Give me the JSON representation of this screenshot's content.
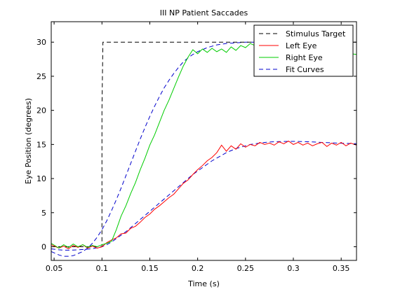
{
  "chart_data": {
    "type": "line",
    "title": "III NP Patient Saccades",
    "xlabel": "Time (s)",
    "ylabel": "Eye Position (degrees)",
    "xlim": [
      0.047,
      0.366
    ],
    "ylim": [
      -2,
      33
    ],
    "xticks": [
      0.05,
      0.1,
      0.15,
      0.2,
      0.25,
      0.3,
      0.35
    ],
    "xtick_labels": [
      "0.05",
      "0.1",
      "0.15",
      "0.2",
      "0.25",
      "0.3",
      "0.35"
    ],
    "yticks": [
      0,
      5,
      10,
      15,
      20,
      25,
      30
    ],
    "ytick_labels": [
      "0",
      "5",
      "10",
      "15",
      "20",
      "25",
      "30"
    ],
    "grid": false,
    "legend_position": "top-right",
    "series": [
      {
        "name": "Stimulus Target",
        "color": "#000000",
        "dash": "dashed",
        "x": [
          0.047,
          0.1,
          0.1,
          0.101,
          0.366
        ],
        "y": [
          0,
          0,
          20,
          30,
          30
        ]
      },
      {
        "name": "Left Eye",
        "color": "#ff0000",
        "dash": "solid",
        "x": [
          0.047,
          0.055,
          0.06,
          0.065,
          0.07,
          0.075,
          0.08,
          0.085,
          0.09,
          0.095,
          0.1,
          0.105,
          0.11,
          0.115,
          0.12,
          0.125,
          0.13,
          0.135,
          0.14,
          0.145,
          0.15,
          0.155,
          0.16,
          0.165,
          0.17,
          0.175,
          0.18,
          0.185,
          0.19,
          0.195,
          0.2,
          0.205,
          0.21,
          0.215,
          0.22,
          0.225,
          0.23,
          0.235,
          0.24,
          0.245,
          0.25,
          0.255,
          0.26,
          0.265,
          0.27,
          0.275,
          0.28,
          0.285,
          0.29,
          0.295,
          0.3,
          0.305,
          0.31,
          0.315,
          0.32,
          0.325,
          0.33,
          0.335,
          0.34,
          0.345,
          0.35,
          0.355,
          0.36,
          0.366
        ],
        "y": [
          0.3,
          -0.2,
          0.1,
          -0.3,
          0.2,
          -0.1,
          0.3,
          -0.2,
          0.1,
          -0.2,
          0.0,
          0.6,
          1.0,
          1.3,
          1.9,
          2.0,
          2.7,
          3.0,
          3.6,
          4.3,
          4.8,
          5.5,
          6.0,
          6.6,
          7.2,
          7.7,
          8.5,
          9.3,
          9.8,
          10.6,
          11.3,
          11.9,
          12.6,
          13.1,
          13.8,
          14.9,
          14.0,
          14.8,
          14.3,
          15.1,
          14.6,
          15.0,
          14.8,
          15.3,
          15.0,
          15.2,
          14.9,
          15.4,
          15.1,
          15.5,
          15.0,
          15.3,
          14.9,
          15.2,
          14.8,
          15.1,
          15.3,
          14.7,
          15.2,
          14.9,
          15.3,
          14.8,
          15.2,
          14.9
        ]
      },
      {
        "name": "Right Eye",
        "color": "#00cc00",
        "dash": "solid",
        "x": [
          0.047,
          0.055,
          0.06,
          0.065,
          0.07,
          0.075,
          0.08,
          0.085,
          0.09,
          0.095,
          0.1,
          0.105,
          0.11,
          0.115,
          0.12,
          0.125,
          0.13,
          0.135,
          0.14,
          0.145,
          0.15,
          0.155,
          0.16,
          0.165,
          0.17,
          0.175,
          0.18,
          0.185,
          0.19,
          0.195,
          0.2,
          0.205,
          0.21,
          0.215,
          0.22,
          0.225,
          0.23,
          0.235,
          0.24,
          0.245,
          0.25,
          0.255,
          0.26,
          0.265,
          0.27,
          0.275,
          0.28,
          0.285,
          0.29,
          0.295,
          0.3,
          0.305,
          0.31,
          0.315,
          0.32,
          0.325,
          0.33,
          0.335,
          0.34,
          0.345,
          0.35,
          0.355,
          0.36,
          0.366
        ],
        "y": [
          0.5,
          -0.2,
          0.3,
          -0.1,
          0.4,
          0.0,
          0.3,
          -0.1,
          0.2,
          0.0,
          0.3,
          0.5,
          0.8,
          2.5,
          4.5,
          6.0,
          7.8,
          9.4,
          11.3,
          13.0,
          14.9,
          16.4,
          18.2,
          20.0,
          21.5,
          23.2,
          24.9,
          26.5,
          27.8,
          28.9,
          28.3,
          29.0,
          28.5,
          29.1,
          28.6,
          29.0,
          28.5,
          29.3,
          28.8,
          29.5,
          29.2,
          29.8,
          29.5,
          30.1,
          29.7,
          29.9,
          29.4,
          29.7,
          29.2,
          29.5,
          28.8,
          29.3,
          28.7,
          29.1,
          28.5,
          29.0,
          28.6,
          29.2,
          28.7,
          28.9,
          28.5,
          28.7,
          28.3,
          28.2
        ]
      },
      {
        "name": "Fit Curves",
        "color": "#0000cc",
        "dash": "dashed",
        "parts": [
          {
            "x": [
              0.047,
              0.055,
              0.06,
              0.065,
              0.07,
              0.075,
              0.08,
              0.085,
              0.09,
              0.095,
              0.1,
              0.105,
              0.11,
              0.115,
              0.12,
              0.125,
              0.13,
              0.135,
              0.14,
              0.145,
              0.15,
              0.155,
              0.16,
              0.165,
              0.17,
              0.175,
              0.18,
              0.185,
              0.19,
              0.195,
              0.2,
              0.205,
              0.21,
              0.215,
              0.22,
              0.225,
              0.23,
              0.235,
              0.24,
              0.245,
              0.25,
              0.255,
              0.26,
              0.265,
              0.27
            ],
            "y": [
              -0.7,
              -1.2,
              -1.4,
              -1.4,
              -1.3,
              -1.0,
              -0.7,
              -0.2,
              0.5,
              1.4,
              2.5,
              3.8,
              5.3,
              6.9,
              8.6,
              10.4,
              12.2,
              14.0,
              15.8,
              17.5,
              19.1,
              20.6,
              22.0,
              23.3,
              24.4,
              25.4,
              26.3,
              27.1,
              27.7,
              28.2,
              28.6,
              28.9,
              29.2,
              29.4,
              29.6,
              29.7,
              29.8,
              29.85,
              29.9,
              29.95,
              30.0,
              30.0,
              30.0,
              30.0,
              30.0
            ]
          },
          {
            "x": [
              0.047,
              0.055,
              0.06,
              0.065,
              0.07,
              0.075,
              0.08,
              0.085,
              0.09,
              0.095,
              0.1,
              0.105,
              0.11,
              0.115,
              0.12,
              0.125,
              0.13,
              0.135,
              0.14,
              0.145,
              0.15,
              0.155,
              0.16,
              0.165,
              0.17,
              0.175,
              0.18,
              0.185,
              0.19,
              0.195,
              0.2,
              0.205,
              0.21,
              0.215,
              0.22,
              0.225,
              0.23,
              0.235,
              0.24,
              0.245,
              0.25,
              0.255,
              0.26,
              0.265,
              0.27,
              0.275,
              0.28,
              0.285,
              0.29,
              0.295,
              0.3,
              0.305,
              0.31,
              0.315,
              0.32,
              0.325,
              0.33,
              0.335,
              0.34,
              0.345,
              0.35,
              0.355,
              0.36,
              0.366
            ],
            "y": [
              -0.3,
              -0.45,
              -0.5,
              -0.5,
              -0.48,
              -0.45,
              -0.4,
              -0.35,
              -0.28,
              -0.15,
              0.0,
              0.3,
              0.7,
              1.2,
              1.7,
              2.2,
              2.8,
              3.4,
              4.0,
              4.6,
              5.2,
              5.8,
              6.4,
              7.0,
              7.6,
              8.2,
              8.8,
              9.4,
              10.0,
              10.6,
              11.1,
              11.6,
              12.1,
              12.6,
              13.0,
              13.4,
              13.8,
              14.1,
              14.4,
              14.6,
              14.8,
              15.0,
              15.1,
              15.2,
              15.3,
              15.35,
              15.4,
              15.42,
              15.44,
              15.45,
              15.45,
              15.44,
              15.42,
              15.4,
              15.37,
              15.33,
              15.3,
              15.27,
              15.24,
              15.21,
              15.18,
              15.16,
              15.14,
              15.12
            ]
          }
        ]
      }
    ]
  }
}
